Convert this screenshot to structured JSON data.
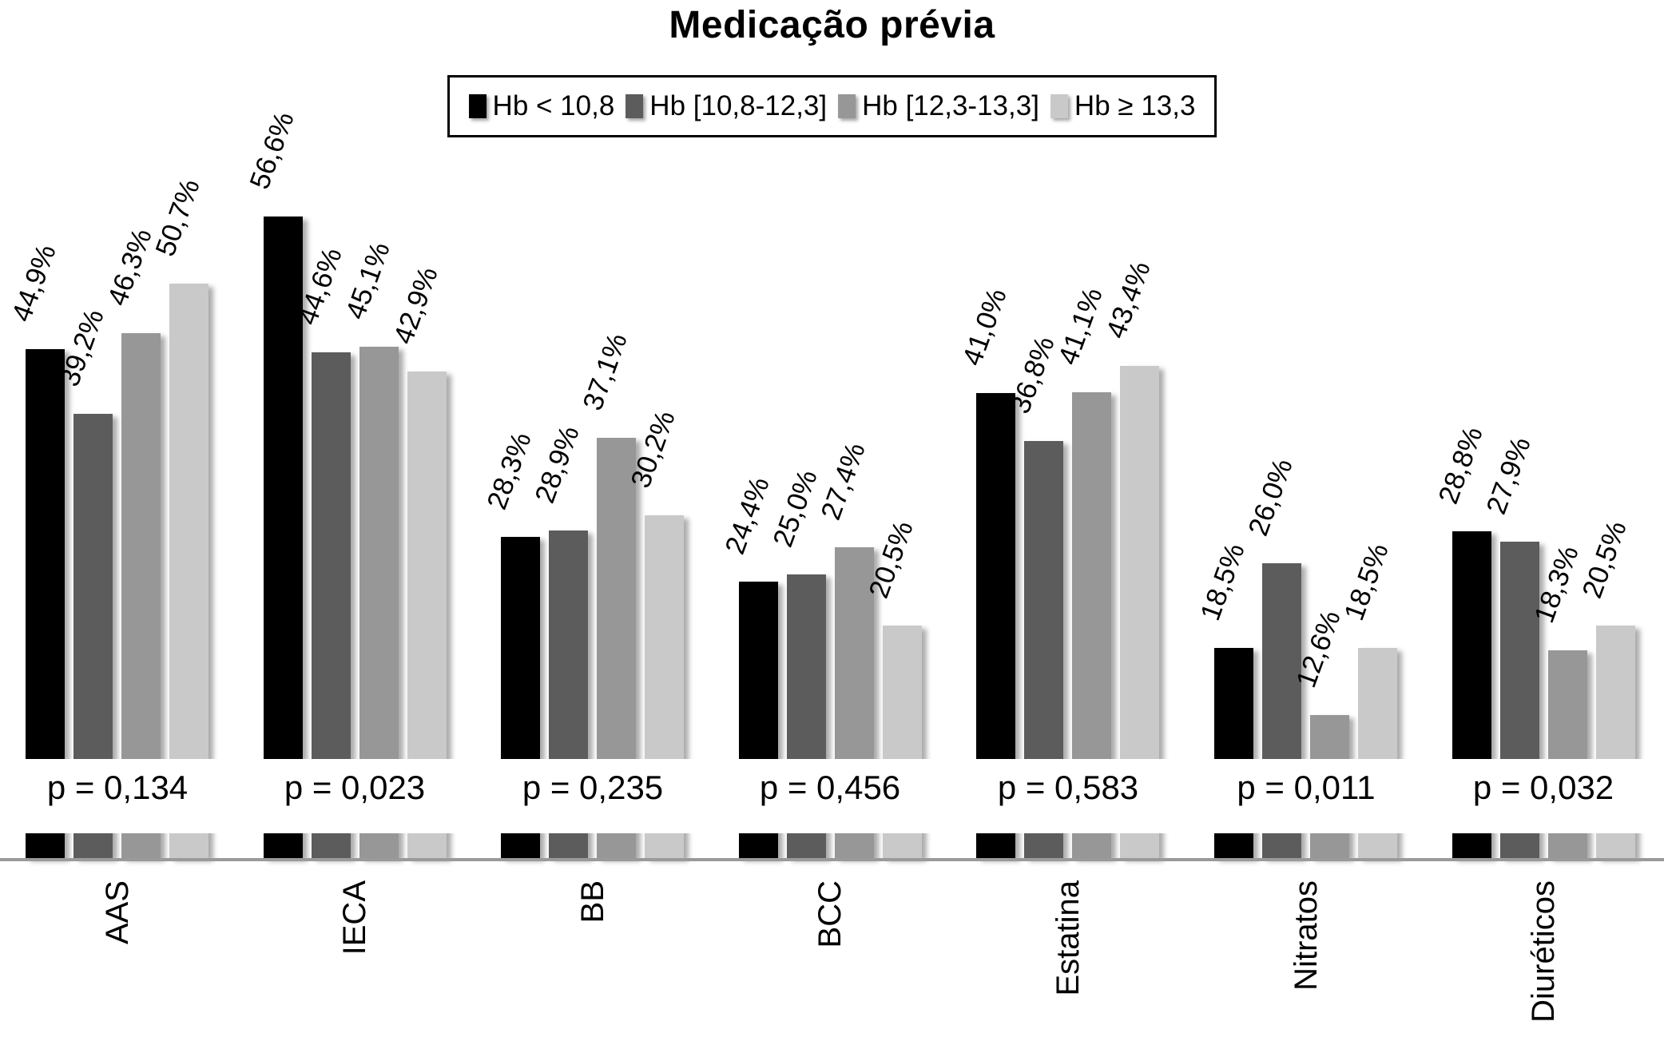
{
  "title": "Medicação prévia",
  "chart_data": {
    "type": "bar",
    "title": "Medicação prévia",
    "grid": false,
    "legend_position": "top-center",
    "y_axis_visible": false,
    "ylim": [
      0,
      60
    ],
    "value_unit": "%",
    "decimal_separator": ",",
    "categories": [
      "AAS",
      "IECA",
      "BB",
      "BCC",
      "Estatina",
      "Nitratos",
      "Diuréticos"
    ],
    "series": [
      {
        "name": "Hb < 10,8",
        "color": "#000000",
        "values": [
          44.9,
          56.6,
          28.3,
          24.4,
          41.0,
          18.5,
          28.8
        ],
        "labels": [
          "44,9%",
          "56,6%",
          "28,3%",
          "24,4%",
          "41,0%",
          "18,5%",
          "28,8%"
        ]
      },
      {
        "name": "Hb [10,8-12,3]",
        "color": "#5c5c5c",
        "values": [
          39.2,
          44.6,
          28.9,
          25.0,
          36.8,
          26.0,
          27.9
        ],
        "labels": [
          "39,2%",
          "44,6%",
          "28,9%",
          "25,0%",
          "36,8%",
          "26,0%",
          "27,9%"
        ]
      },
      {
        "name": "Hb [12,3-13,3]",
        "color": "#979797",
        "values": [
          46.3,
          45.1,
          37.1,
          27.4,
          41.1,
          12.6,
          18.3
        ],
        "labels": [
          "46,3%",
          "45,1%",
          "37,1%",
          "27,4%",
          "41,1%",
          "12,6%",
          "18,3%"
        ]
      },
      {
        "name": "Hb ≥ 13,3",
        "color": "#c9c9c9",
        "values": [
          50.7,
          42.9,
          30.2,
          20.5,
          43.4,
          18.5,
          20.5
        ],
        "labels": [
          "50,7%",
          "42,9%",
          "30,2%",
          "20,5%",
          "43,4%",
          "18,5%",
          "20,5%"
        ]
      }
    ],
    "p_values": [
      "p = 0,134",
      "p = 0,023",
      "p = 0,235",
      "p = 0,456",
      "p = 0,583",
      "p = 0,011",
      "p = 0,032"
    ]
  },
  "colors": {
    "background": "#ffffff",
    "text": "#000000",
    "axis_line": "#9a9a9a"
  }
}
